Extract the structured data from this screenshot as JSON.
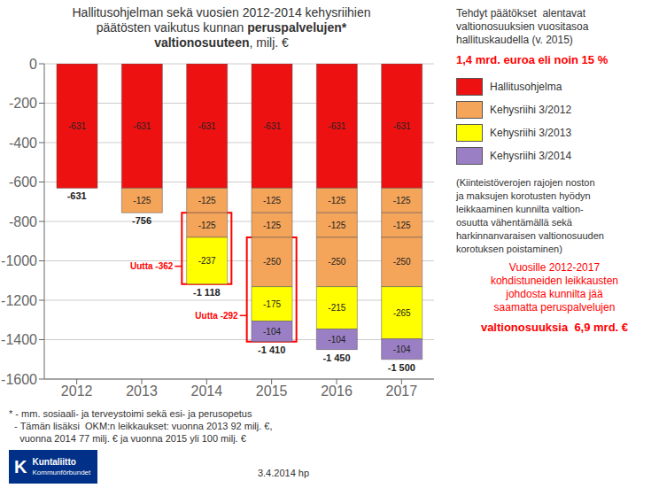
{
  "chart_data": {
    "type": "bar",
    "stacked": true,
    "title": [
      [
        {
          "text": "Hallitusohjelman sekä vuosien 2012-2014 kehysriihien",
          "bold": false
        }
      ],
      [
        {
          "text": "päätösten vaikutus kunnan ",
          "bold": false
        },
        {
          "text": "peruspalvelujen*",
          "bold": true
        }
      ],
      [
        {
          "text": "valtionosuuteen",
          "bold": true
        },
        {
          "text": ", milj. €",
          "bold": false
        }
      ]
    ],
    "categories": [
      "2012",
      "2013",
      "2014",
      "2015",
      "2016",
      "2017"
    ],
    "series": [
      {
        "name": "Hallitusohjelma",
        "color": "#ee1111",
        "values": [
          -631,
          -631,
          -631,
          -631,
          -631,
          -631
        ]
      },
      {
        "name": "Kehysriihi 3/2012",
        "color": "#f5a55a",
        "values": [
          0,
          -125,
          -125,
          -125,
          -125,
          -125
        ]
      },
      {
        "name": "Kehysriihi 3/2012",
        "color": "#f5a55a",
        "values": [
          0,
          0,
          -125,
          -125,
          -125,
          -125
        ]
      },
      {
        "name": "Kehysriihi 3/2012",
        "color": "#f5a55a",
        "values": [
          0,
          0,
          0,
          -250,
          -250,
          -250
        ]
      },
      {
        "name": "Kehysriihi 3/2013",
        "color": "#ffff00",
        "values": [
          0,
          0,
          -237,
          -175,
          -215,
          -265
        ]
      },
      {
        "name": "Kehysriihi 3/2014",
        "color": "#9b7fc4",
        "values": [
          0,
          0,
          0,
          -104,
          -104,
          -104
        ]
      }
    ],
    "ylim": [
      -1600,
      0
    ],
    "yticks": [
      -1600,
      -1400,
      -1200,
      -1000,
      -800,
      -600,
      -400,
      -200,
      0
    ],
    "grid": true,
    "data_labels": true,
    "legend": "right",
    "totals": [
      -631,
      -756,
      -1118,
      -1410,
      -1450,
      -1500
    ],
    "total_labels": [
      "-631",
      "-756",
      "-1 118",
      "-1 410",
      "-1 450",
      "-1 500"
    ],
    "annotations": [
      {
        "text": "Uutta -362",
        "category": "2014",
        "from": -756,
        "to": -1118,
        "color": "#ff0000"
      },
      {
        "text": "Uutta -292",
        "category": "2015",
        "from": -881,
        "to": -1410,
        "color": "#ff0000"
      }
    ],
    "side_text_top": [
      {
        "lines": [
          "Tehdyt päätökset  alentavat",
          "valtionosuuksien vuositasoa",
          "hallituskaudella (v. 2015)"
        ]
      },
      {
        "lines": [
          "1,4 mrd. euroa eli noin 15 %"
        ],
        "color": "#ff0000",
        "bold": true
      }
    ],
    "side_text_bottom": [
      {
        "lines": [
          "(Kiinteistöverojen rajojen noston",
          "ja maksujen korotusten hyödyn",
          "leikkaaminen kunnilta valtion-",
          "osuutta vähentämällä sekä",
          "harkinnanvaraisen valtionosuuden",
          "korotuksen poistaminen)"
        ]
      },
      {
        "lines": [
          "Vuosille 2012-2017",
          "kohdistuneiden leikkausten",
          "johdosta kunnilta jää",
          "saamatta peruspalvelujen"
        ],
        "color": "#ff0000",
        "center": true
      },
      {
        "lines": [
          "valtionosuuksia  6,9 mrd. €"
        ],
        "color": "#ff0000",
        "bold": true,
        "center": true
      }
    ],
    "footnotes": [
      "* - mm. sosiaali- ja terveystoimi sekä esi- ja perusopetus",
      "  - Tämän lisäksi  OKM:n leikkaukset: vuonna 2013 92 milj. €,",
      "    vuonna 2014 77 milj. € ja vuonna 2015 yli 100 milj. €"
    ],
    "date": "3.4.2014 hp",
    "logo": {
      "lines": [
        "K",
        "Kuntaliitto",
        "Kommunförbundet"
      ],
      "color": "#003087"
    }
  }
}
